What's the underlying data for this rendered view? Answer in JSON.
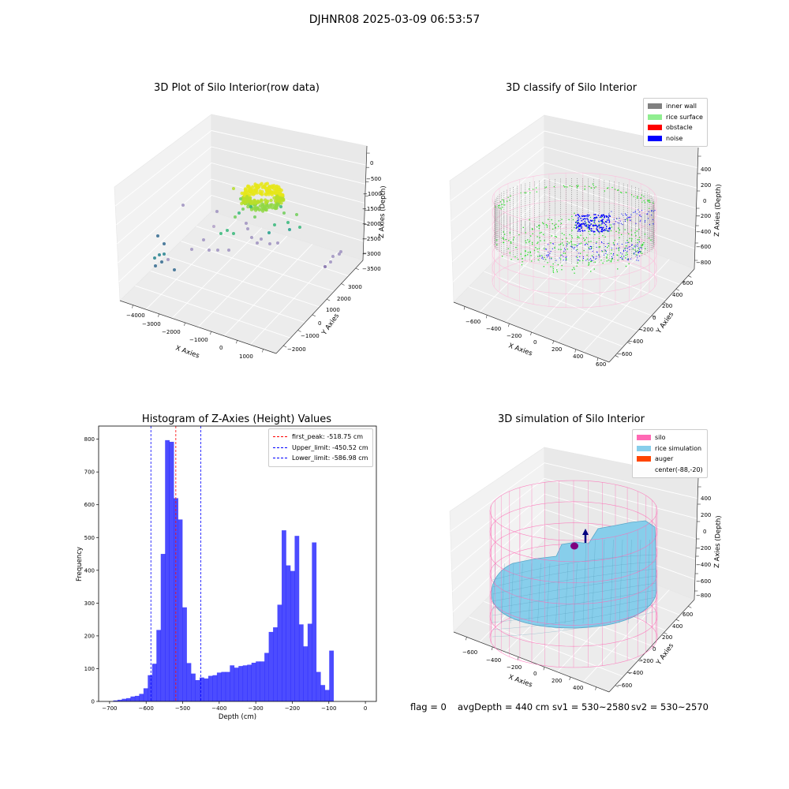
{
  "suptitle": "DJHNR08 2025-03-09 06:53:57",
  "colors": {
    "hist_bar": "#0000ff",
    "first_peak_line": "#ff0000",
    "limit_line": "#0000ff",
    "inner_wall": "#808080",
    "rice_surface": "#90ee90",
    "obstacle": "#ff0000",
    "noise": "#0000ff",
    "silo": "#ff69b4",
    "rice_simulation": "#87ceeb",
    "auger": "#ff4500"
  },
  "status": {
    "flag": "flag = 0",
    "avg_depth": "avgDepth = 440 cm",
    "sv1": "sv1 = 530~2580",
    "sv2": "sv2 = 530~2570"
  },
  "chart_data": [
    {
      "type": "scatter",
      "title": "3D Plot of Silo Interior(row data)",
      "xlabel": "X Axies",
      "ylabel": "Y Axies",
      "zlabel": "Z Axies (Depth)",
      "x_ticks": [
        "−4000",
        "−3000",
        "−2000",
        "−1000",
        "0",
        "1000"
      ],
      "y_ticks": [
        "−2000",
        "−1000",
        "0",
        "1000",
        "2000",
        "3000"
      ],
      "z_ticks": [
        "0",
        "−500",
        "−1000",
        "−1500",
        "−2000",
        "−2500",
        "−3000",
        "−3500"
      ]
    },
    {
      "type": "scatter",
      "title": "3D classify of Silo Interior",
      "xlabel": "X Axies",
      "ylabel": "Y Axies",
      "zlabel": "Z Axies (Depth)",
      "x_ticks": [
        "−600",
        "−400",
        "−200",
        "0",
        "200",
        "400",
        "600"
      ],
      "y_ticks": [
        "−600",
        "−400",
        "−200",
        "0",
        "200",
        "400",
        "600"
      ],
      "z_ticks": [
        "400",
        "200",
        "0",
        "−200",
        "−400",
        "−600",
        "−800"
      ],
      "legend": [
        "inner wall",
        "rice surface",
        "obstacle",
        "noise"
      ]
    },
    {
      "type": "bar",
      "title": "Histogram of Z-Axies (Height) Values",
      "xlabel": "Depth (cm)",
      "ylabel": "Frequency",
      "xlim": [
        -730,
        30
      ],
      "ylim": [
        0,
        840
      ],
      "x_ticks": [
        -700,
        -600,
        -500,
        -400,
        -300,
        -200,
        -100,
        0
      ],
      "y_ticks": [
        0,
        100,
        200,
        300,
        400,
        500,
        600,
        700,
        800
      ],
      "bin_start": -690,
      "bin_width": 11.82,
      "values": [
        3,
        5,
        8,
        10,
        15,
        17,
        23,
        40,
        80,
        115,
        218,
        450,
        797,
        792,
        620,
        555,
        287,
        117,
        85,
        65,
        73,
        70,
        78,
        80,
        88,
        90,
        90,
        110,
        103,
        108,
        110,
        112,
        118,
        122,
        122,
        148,
        212,
        226,
        295,
        522,
        415,
        398,
        505,
        235,
        168,
        237,
        485,
        90,
        50,
        35,
        155
      ],
      "vlines": [
        {
          "label": "first_peak: -518.75 cm",
          "x": -518.75,
          "color": "#ff0000"
        },
        {
          "label": "Upper_limit: -450.52 cm",
          "x": -450.52,
          "color": "#0000ff"
        },
        {
          "label": "Lower_limit: -586.98 cm",
          "x": -586.98,
          "color": "#0000ff"
        }
      ]
    },
    {
      "type": "surface",
      "title": "3D simulation of Silo Interior",
      "xlabel": "X Axies",
      "ylabel": "Y Axies",
      "zlabel": "Z Axies (Depth)",
      "x_ticks": [
        "−600",
        "−400",
        "−200",
        "0",
        "200",
        "400"
      ],
      "y_ticks": [
        "−600",
        "−400",
        "−200",
        "0",
        "200",
        "400",
        "600"
      ],
      "z_ticks": [
        "400",
        "200",
        "0",
        "−200",
        "−400",
        "−600",
        "−800"
      ],
      "legend": [
        "silo",
        "rice simulation",
        "auger",
        "center(-88,-20)"
      ]
    }
  ]
}
